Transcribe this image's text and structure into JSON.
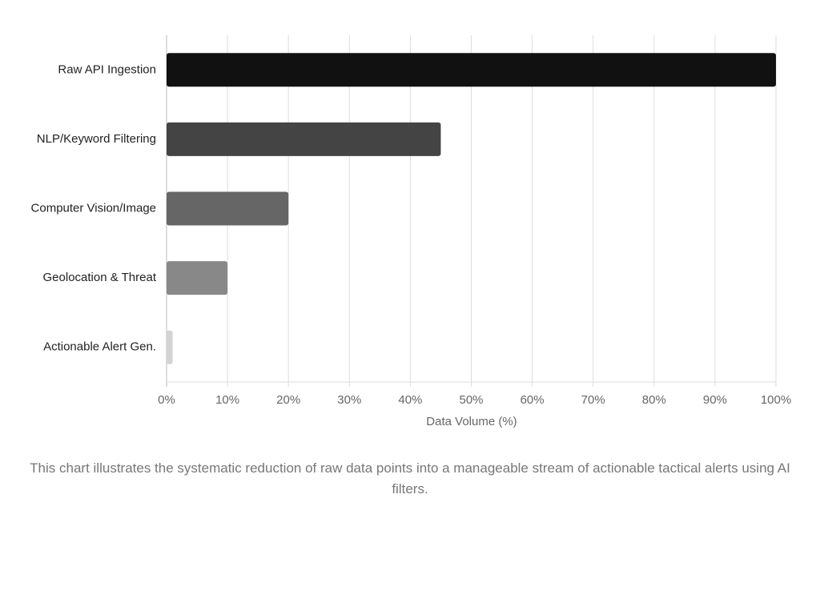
{
  "chart_data": {
    "type": "bar",
    "orientation": "horizontal",
    "categories": [
      "Raw API Ingestion",
      "NLP/Keyword Filtering",
      "Computer Vision/Image",
      "Geolocation & Threat",
      "Actionable Alert Gen."
    ],
    "values": [
      100,
      45,
      20,
      10,
      1
    ],
    "colors": [
      "#111111",
      "#444444",
      "#666666",
      "#888888",
      "#d4d4d4"
    ],
    "xlim": [
      0,
      100
    ],
    "xticks": [
      {
        "value": 0,
        "label": "0%"
      },
      {
        "value": 10,
        "label": "10%"
      },
      {
        "value": 20,
        "label": "20%"
      },
      {
        "value": 30,
        "label": "30%"
      },
      {
        "value": 40,
        "label": "40%"
      },
      {
        "value": 50,
        "label": "50%"
      },
      {
        "value": 60,
        "label": "60%"
      },
      {
        "value": 70,
        "label": "70%"
      },
      {
        "value": 80,
        "label": "80%"
      },
      {
        "value": 90,
        "label": "90%"
      },
      {
        "value": 100,
        "label": "100%"
      }
    ],
    "xlabel": "Data Volume (%)",
    "grid": true,
    "caption": "This chart illustrates the systematic reduction of raw data points into a manageable stream of actionable tactical alerts using AI filters."
  }
}
